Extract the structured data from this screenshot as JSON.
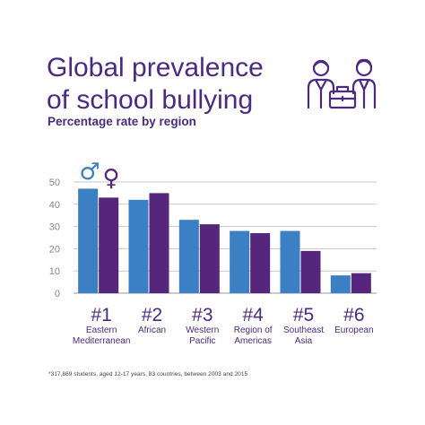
{
  "title_line1": "Global prevalence",
  "title_line2": "of school bullying",
  "subtitle": "Percentage rate by region",
  "footnote": "*317,869 students, aged 12-17 years, 83 countries, between 2003 and 2015",
  "colors": {
    "male": "#3b7fc4",
    "female": "#56267d",
    "text": "#4b2a83",
    "grid": "#c9c9c9"
  },
  "legend_symbols": {
    "male": "♂",
    "female": "♀"
  },
  "chart_data": {
    "type": "bar",
    "title": "Global prevalence of school bullying",
    "subtitle": "Percentage rate by region",
    "ylim": [
      0,
      50
    ],
    "yticks": [
      0,
      10,
      20,
      30,
      40,
      50
    ],
    "grid": true,
    "ranks": [
      "#1",
      "#2",
      "#3",
      "#4",
      "#5",
      "#6"
    ],
    "categories": [
      [
        "Eastern",
        "Mediterranean"
      ],
      [
        "African"
      ],
      [
        "Western",
        "Pacific"
      ],
      [
        "Region of",
        "Americas"
      ],
      [
        "Southeast",
        "Asia"
      ],
      [
        "European"
      ]
    ],
    "series": [
      {
        "values": [
          47,
          42,
          33,
          28,
          28,
          8
        ],
        "color": "#3b7fc4"
      },
      {
        "values": [
          43,
          45,
          31,
          27,
          19,
          9
        ],
        "color": "#56267d"
      }
    ]
  }
}
